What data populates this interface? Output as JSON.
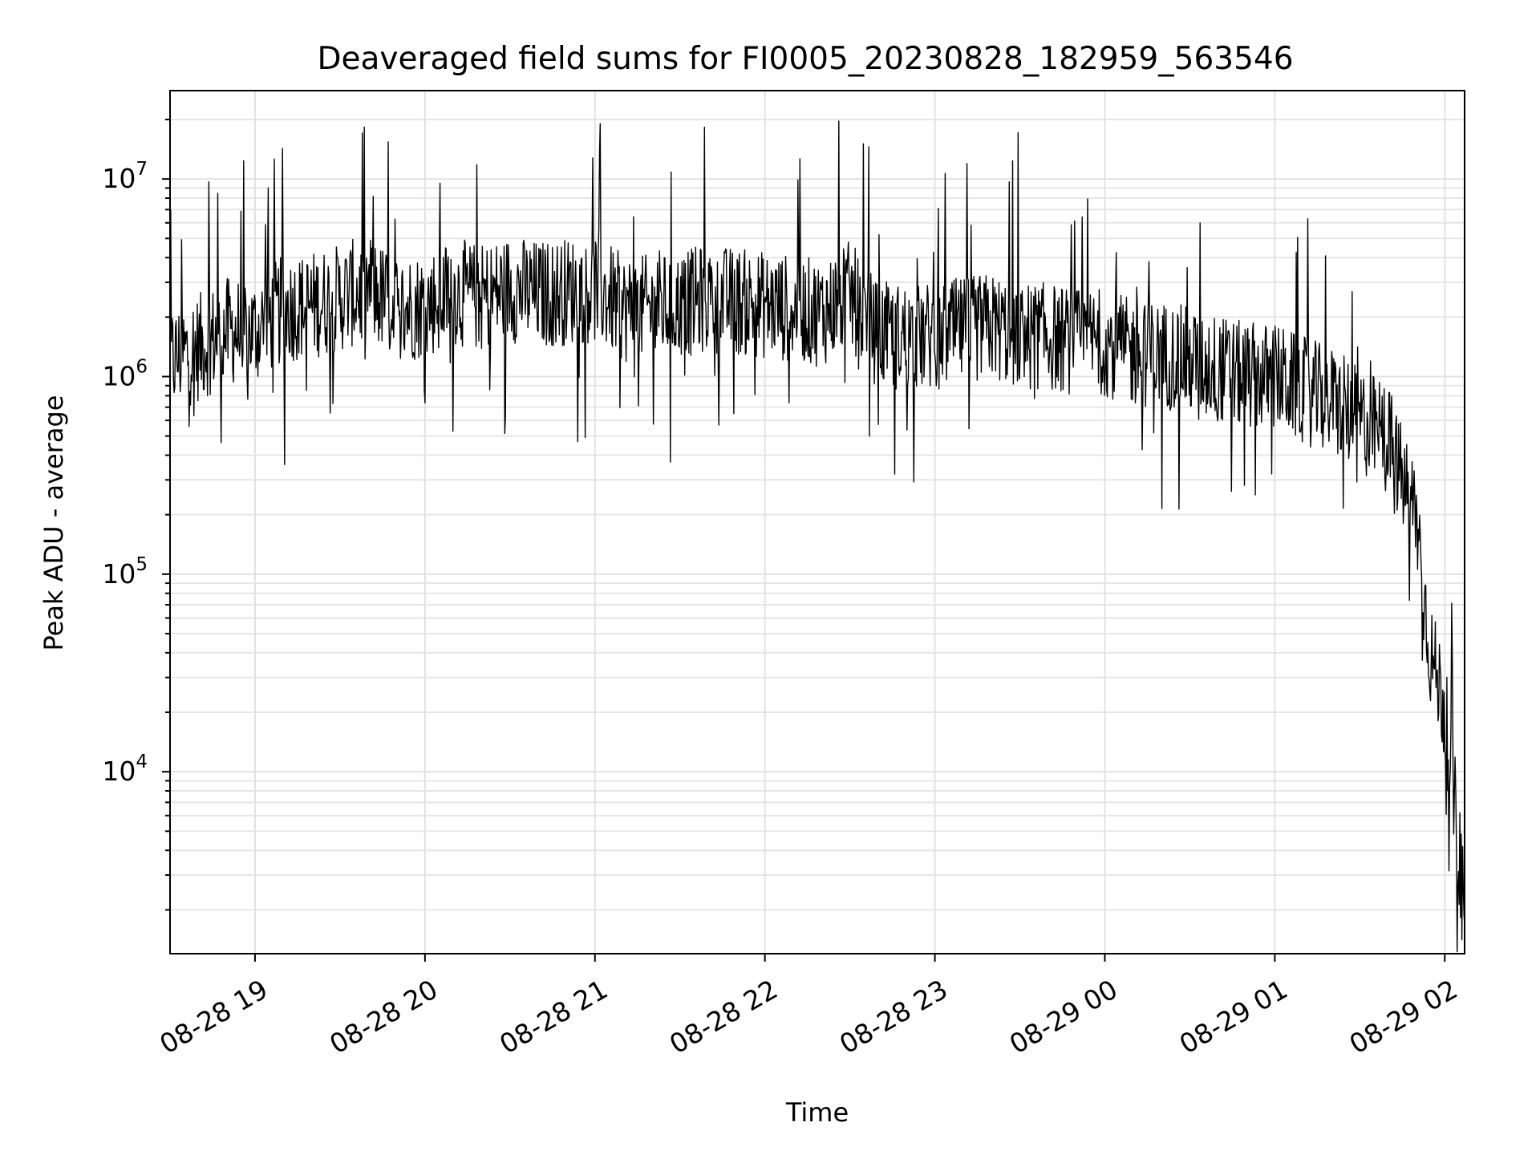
{
  "chart_data": {
    "type": "line",
    "title": "Deaveraged field sums for FI0005_20230828_182959_563546",
    "xlabel": "Time",
    "ylabel": "Peak ADU - average",
    "yscale": "log",
    "ylim": [
      1200,
      28000000
    ],
    "xlim": [
      "2023-08-28 18:30",
      "2023-08-29 02:07"
    ],
    "grid": "on (major and minor)",
    "x_ticks": [
      {
        "label": "08-28 19",
        "t": "2023-08-28 19:00"
      },
      {
        "label": "08-28 20",
        "t": "2023-08-28 20:00"
      },
      {
        "label": "08-28 21",
        "t": "2023-08-28 21:00"
      },
      {
        "label": "08-28 22",
        "t": "2023-08-28 22:00"
      },
      {
        "label": "08-28 23",
        "t": "2023-08-28 23:00"
      },
      {
        "label": "08-29 00",
        "t": "2023-08-29 00:00"
      },
      {
        "label": "08-29 01",
        "t": "2023-08-29 01:00"
      },
      {
        "label": "08-29 02",
        "t": "2023-08-29 02:00"
      }
    ],
    "y_ticks": [
      {
        "base": "10",
        "exp": "4",
        "value": 10000
      },
      {
        "base": "10",
        "exp": "5",
        "value": 100000
      },
      {
        "base": "10",
        "exp": "6",
        "value": 1000000
      },
      {
        "base": "10",
        "exp": "7",
        "value": 10000000
      }
    ],
    "series": [
      {
        "color": "#000000",
        "x": [
          "2023-08-28 18:30",
          "2023-08-28 18:40",
          "2023-08-28 18:50",
          "2023-08-28 19:00",
          "2023-08-28 19:10",
          "2023-08-28 19:20",
          "2023-08-28 19:30",
          "2023-08-28 19:40",
          "2023-08-28 19:50",
          "2023-08-28 20:00",
          "2023-08-28 20:10",
          "2023-08-28 20:20",
          "2023-08-28 20:30",
          "2023-08-28 20:40",
          "2023-08-28 20:50",
          "2023-08-28 21:00",
          "2023-08-28 21:10",
          "2023-08-28 21:20",
          "2023-08-28 21:30",
          "2023-08-28 21:40",
          "2023-08-28 21:50",
          "2023-08-28 22:00",
          "2023-08-28 22:10",
          "2023-08-28 22:20",
          "2023-08-28 22:30",
          "2023-08-28 22:40",
          "2023-08-28 22:50",
          "2023-08-28 23:00",
          "2023-08-28 23:10",
          "2023-08-28 23:20",
          "2023-08-28 23:30",
          "2023-08-28 23:40",
          "2023-08-28 23:50",
          "2023-08-29 00:00",
          "2023-08-29 00:10",
          "2023-08-29 00:20",
          "2023-08-29 00:30",
          "2023-08-29 00:40",
          "2023-08-29 00:50",
          "2023-08-29 01:00",
          "2023-08-29 01:10",
          "2023-08-29 01:20",
          "2023-08-29 01:30",
          "2023-08-29 01:40",
          "2023-08-29 01:45",
          "2023-08-29 01:50",
          "2023-08-29 01:53",
          "2023-08-29 01:55",
          "2023-08-29 01:57",
          "2023-08-29 01:59",
          "2023-08-29 02:01",
          "2023-08-29 02:03",
          "2023-08-29 02:05",
          "2023-08-29 02:07"
        ],
        "y": [
          1200000,
          1400000,
          1700000,
          1700000,
          2200000,
          2300000,
          2500000,
          2800000,
          2200000,
          2300000,
          2700000,
          2500000,
          2800000,
          2600000,
          2700000,
          2800000,
          2200000,
          2200000,
          2300000,
          2500000,
          2400000,
          2300000,
          2200000,
          2100000,
          2600000,
          1600000,
          1600000,
          1600000,
          1700000,
          1800000,
          1600000,
          1600000,
          1500000,
          1500000,
          1300000,
          1300000,
          1200000,
          1100000,
          1000000,
          1000000,
          850000,
          750000,
          600000,
          500000,
          300000,
          200000,
          70000,
          40000,
          30000,
          25000,
          15000,
          8000,
          4000,
          1700
        ]
      }
    ]
  }
}
